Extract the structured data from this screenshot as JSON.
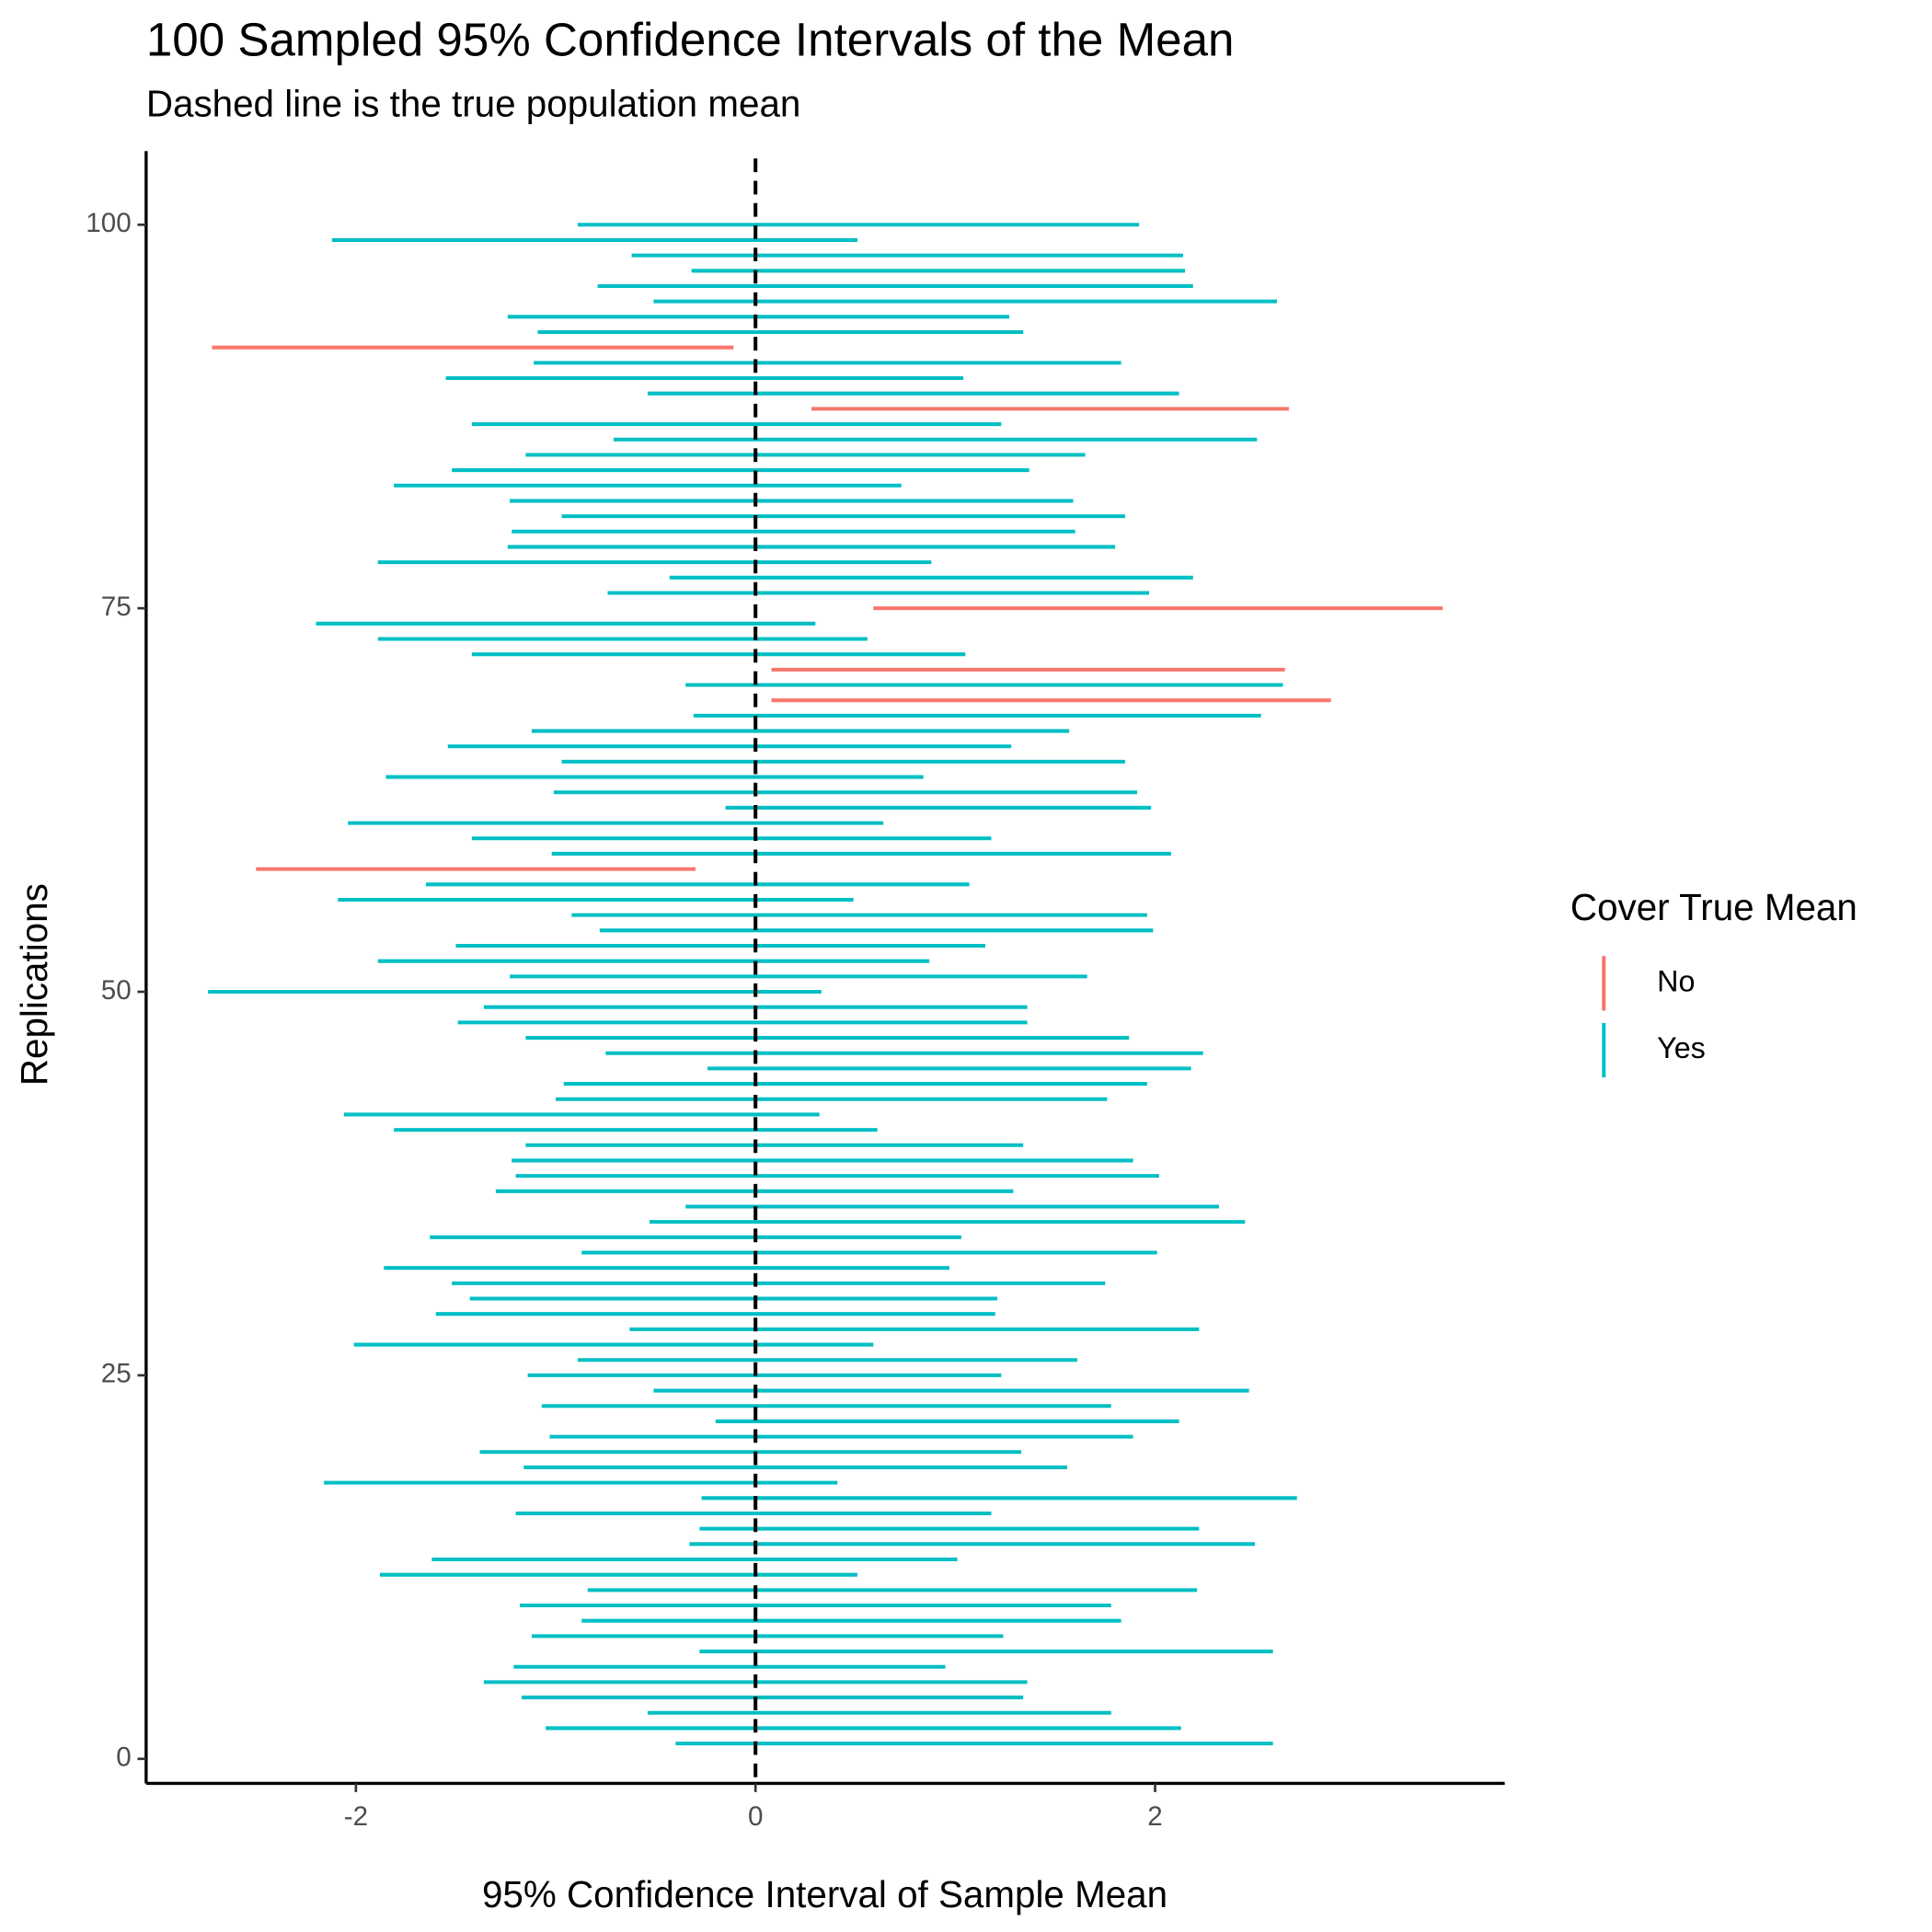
{
  "chart_data": {
    "type": "interval",
    "title": "100 Sampled 95% Confidence Intervals of the Mean",
    "subtitle": "Dashed line is the true population mean",
    "x_label": "95% Confidence Interval of Sample Mean",
    "y_label": "Replications",
    "legend_title": "Cover True Mean",
    "legend_position": "right",
    "true_mean": 0,
    "xlim": [
      -3.05,
      3.75
    ],
    "ylim": [
      -1.6,
      104.8
    ],
    "xticks": [
      -2,
      0,
      2
    ],
    "yticks": [
      0,
      25,
      50,
      75,
      100
    ],
    "series": [
      {
        "name": "No",
        "color": "#F8766D",
        "y": [
          58,
          69,
          71,
          75,
          88,
          92
        ],
        "low": [
          -2.5,
          0.08,
          0.08,
          0.59,
          0.28,
          -2.72
        ],
        "high": [
          -0.3,
          2.88,
          2.65,
          3.44,
          2.67,
          -0.11
        ]
      },
      {
        "name": "Yes",
        "color": "#00BFC4",
        "y": [
          1,
          2,
          3,
          4,
          5,
          6,
          7,
          8,
          9,
          10,
          11,
          12,
          13,
          14,
          15,
          16,
          17,
          18,
          19,
          20,
          21,
          22,
          23,
          24,
          25,
          26,
          27,
          28,
          29,
          30,
          31,
          32,
          33,
          34,
          35,
          36,
          37,
          38,
          39,
          40,
          41,
          42,
          43,
          44,
          45,
          46,
          47,
          48,
          49,
          50,
          51,
          52,
          53,
          54,
          55,
          56,
          57,
          59,
          60,
          61,
          62,
          63,
          64,
          65,
          66,
          67,
          68,
          70,
          72,
          73,
          74,
          76,
          77,
          78,
          79,
          80,
          81,
          82,
          83,
          84,
          85,
          86,
          87,
          89,
          90,
          91,
          93,
          94,
          95,
          96,
          97,
          98,
          99,
          100
        ],
        "low": [
          -0.4,
          -1.05,
          -0.54,
          -1.17,
          -1.36,
          -1.21,
          -0.28,
          -1.12,
          -0.87,
          -1.18,
          -0.84,
          -1.88,
          -1.62,
          -0.33,
          -0.28,
          -1.2,
          -0.27,
          -2.16,
          -1.16,
          -1.38,
          -1.03,
          -0.2,
          -1.07,
          -0.51,
          -1.14,
          -0.89,
          -2.01,
          -0.63,
          -1.6,
          -1.43,
          -1.52,
          -1.86,
          -0.87,
          -1.63,
          -0.53,
          -0.35,
          -1.3,
          -1.2,
          -1.22,
          -1.15,
          -1.81,
          -2.06,
          -1.0,
          -0.96,
          -0.24,
          -0.75,
          -1.15,
          -1.49,
          -1.36,
          -2.74,
          -1.23,
          -1.89,
          -1.5,
          -0.78,
          -0.92,
          -2.09,
          -1.65,
          -1.02,
          -1.42,
          -2.04,
          -0.15,
          -1.01,
          -1.85,
          -0.97,
          -1.54,
          -1.12,
          -0.31,
          -0.35,
          -1.42,
          -1.89,
          -2.2,
          -0.74,
          -0.43,
          -1.89,
          -1.24,
          -1.22,
          -0.97,
          -1.23,
          -1.81,
          -1.52,
          -1.15,
          -0.71,
          -1.42,
          -0.54,
          -1.55,
          -1.11,
          -1.09,
          -1.24,
          -0.51,
          -0.79,
          -0.32,
          -0.62,
          -2.12,
          -0.89
        ],
        "high": [
          2.59,
          2.13,
          1.78,
          1.34,
          1.36,
          0.95,
          2.59,
          1.24,
          1.83,
          1.78,
          2.21,
          0.51,
          1.01,
          2.5,
          2.22,
          1.18,
          2.71,
          0.41,
          1.56,
          1.33,
          1.89,
          2.12,
          1.78,
          2.47,
          1.23,
          1.61,
          0.59,
          2.22,
          1.2,
          1.21,
          1.75,
          0.97,
          2.01,
          1.03,
          2.45,
          2.32,
          1.29,
          2.02,
          1.89,
          1.34,
          0.61,
          0.32,
          1.76,
          1.96,
          2.18,
          2.24,
          1.87,
          1.36,
          1.36,
          0.33,
          1.66,
          0.87,
          1.15,
          1.99,
          1.96,
          0.49,
          1.07,
          2.08,
          1.18,
          0.64,
          1.98,
          1.91,
          0.84,
          1.85,
          1.28,
          1.57,
          2.53,
          2.64,
          1.05,
          0.56,
          0.3,
          1.97,
          2.19,
          0.88,
          1.8,
          1.6,
          1.85,
          1.59,
          0.73,
          1.37,
          1.65,
          2.51,
          1.23,
          2.12,
          1.04,
          1.83,
          1.34,
          1.27,
          2.61,
          2.19,
          2.15,
          2.14,
          0.51,
          1.92
        ]
      }
    ]
  }
}
